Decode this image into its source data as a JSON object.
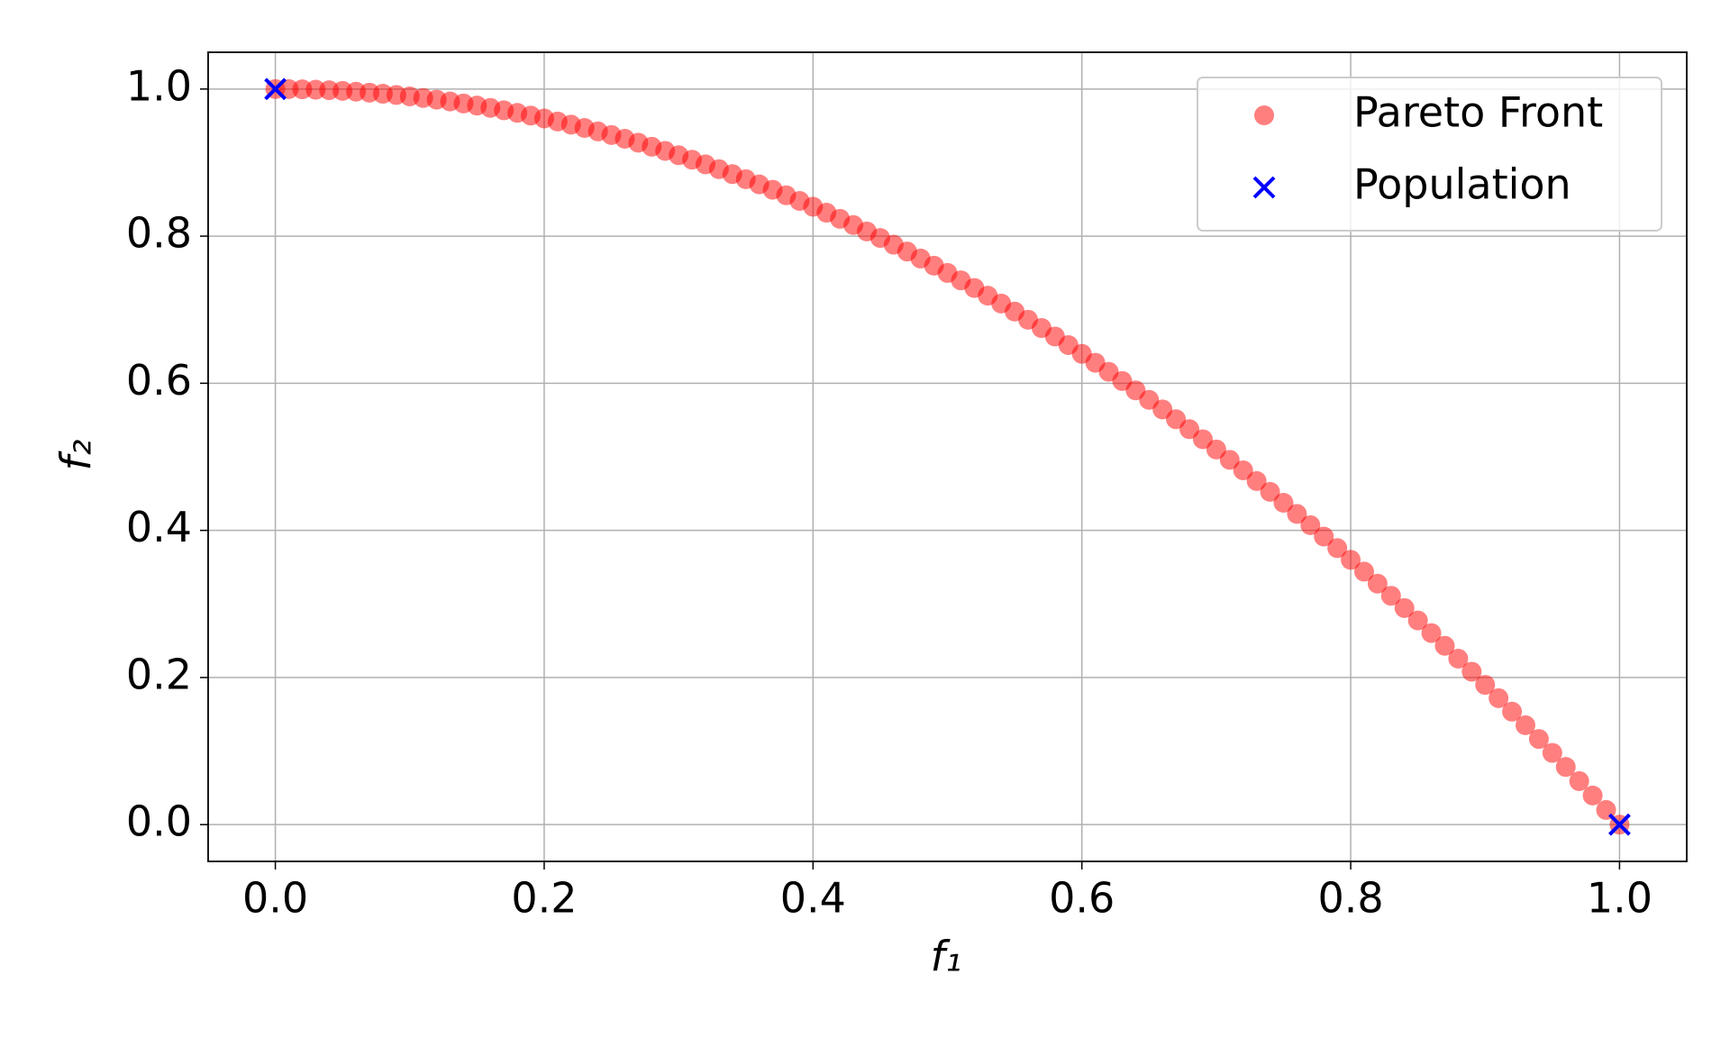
{
  "chart_data": {
    "type": "scatter",
    "x_label": "f₁",
    "y_label": "f₂",
    "xlim": [
      -0.05,
      1.05
    ],
    "ylim": [
      -0.05,
      1.05
    ],
    "xticks": [
      {
        "value": 0,
        "label": "0.0"
      },
      0.2,
      0.4,
      0.6,
      0.8,
      {
        "value": 1,
        "label": "1.0"
      }
    ],
    "yticks": [
      {
        "value": 0,
        "label": "0.0"
      },
      0.2,
      0.4,
      0.6,
      0.8,
      {
        "value": 1,
        "label": "1.0"
      }
    ],
    "grid": true,
    "legend": "upper right",
    "series": [
      {
        "name": "Pareto Front",
        "color": "#ff0000",
        "marker": "o",
        "x": [
          0,
          0.01,
          0.02,
          0.03,
          0.04,
          0.05,
          0.06,
          0.07,
          0.08,
          0.09,
          0.1,
          0.11,
          0.12,
          0.13,
          0.14,
          0.15,
          0.16,
          0.17,
          0.18,
          0.19,
          0.2,
          0.21,
          0.22,
          0.23,
          0.24,
          0.25,
          0.26,
          0.27,
          0.28,
          0.29,
          0.3,
          0.31,
          0.32,
          0.33,
          0.34,
          0.35,
          0.36,
          0.37,
          0.38,
          0.39,
          0.4,
          0.41,
          0.42,
          0.43,
          0.44,
          0.45,
          0.46,
          0.47,
          0.48,
          0.49,
          0.5,
          0.51,
          0.52,
          0.53,
          0.54,
          0.55,
          0.56,
          0.57,
          0.58,
          0.59,
          0.6,
          0.61,
          0.62,
          0.63,
          0.64,
          0.65,
          0.66,
          0.67,
          0.68,
          0.69,
          0.7,
          0.71,
          0.72,
          0.73,
          0.74,
          0.75,
          0.76,
          0.77,
          0.78,
          0.79,
          0.8,
          0.81,
          0.82,
          0.83,
          0.84,
          0.85,
          0.86,
          0.87,
          0.88,
          0.89,
          0.9,
          0.91,
          0.92,
          0.93,
          0.94,
          0.95,
          0.96,
          0.97,
          0.98,
          0.99,
          1
        ],
        "values": [
          1,
          0.9999,
          0.9996,
          0.9991,
          0.9984,
          0.9975,
          0.9964,
          0.9951,
          0.9936,
          0.9919,
          0.99,
          0.9879,
          0.9856,
          0.9831,
          0.9804,
          0.9775,
          0.9744,
          0.9711,
          0.9676,
          0.9639,
          0.96,
          0.9559,
          0.9516,
          0.9471,
          0.9424,
          0.9375,
          0.9324,
          0.9271,
          0.9216,
          0.9159,
          0.91,
          0.9039,
          0.8976,
          0.8911,
          0.8844,
          0.8775,
          0.8704,
          0.8631,
          0.8556,
          0.8479,
          0.84,
          0.8319,
          0.8236,
          0.8151,
          0.8064,
          0.7975,
          0.7884,
          0.7791,
          0.7696,
          0.7599,
          0.75,
          0.7399,
          0.7296,
          0.7191,
          0.7084,
          0.6975,
          0.6864,
          0.6751,
          0.6636,
          0.6519,
          0.64,
          0.6279,
          0.6156,
          0.6031,
          0.5904,
          0.5775,
          0.5644,
          0.5511,
          0.5376,
          0.5239,
          0.51,
          0.4959,
          0.4816,
          0.4671,
          0.4524,
          0.4375,
          0.4224,
          0.4071,
          0.3916,
          0.3759,
          0.36,
          0.3439,
          0.3276,
          0.3111,
          0.2944,
          0.2775,
          0.2604,
          0.2431,
          0.2256,
          0.2079,
          0.19,
          0.1719,
          0.1536,
          0.1351,
          0.1164,
          0.0975,
          0.0784,
          0.0591,
          0.0396,
          0.0199,
          0
        ]
      },
      {
        "name": "Population",
        "color": "#0000ff",
        "marker": "x",
        "x": [
          0,
          1
        ],
        "values": [
          1,
          0
        ]
      }
    ]
  }
}
